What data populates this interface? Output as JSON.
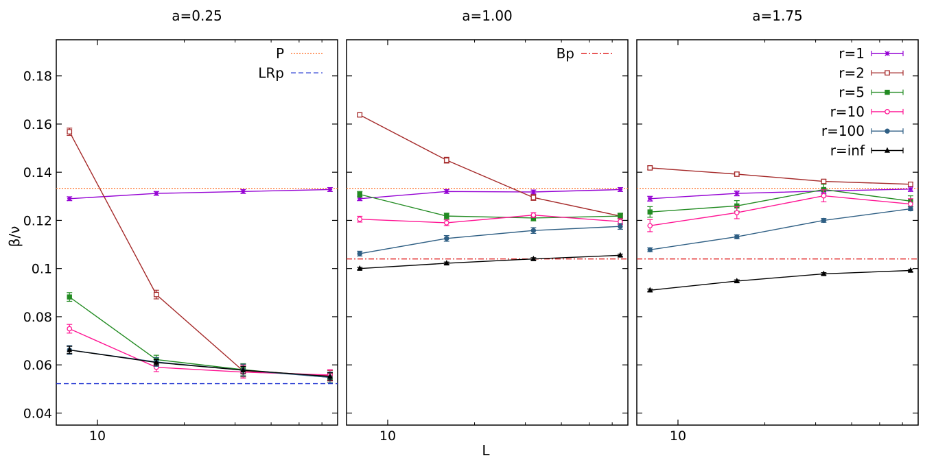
{
  "chart_data": {
    "type": "line",
    "xscale": "log",
    "xlabel": "L",
    "ylabel": "β/ν",
    "xlim": [
      7.2,
      68
    ],
    "ylim": [
      0.035,
      0.195
    ],
    "yticks": [
      0.04,
      0.06,
      0.08,
      0.1,
      0.12,
      0.14,
      0.16,
      0.18
    ],
    "ytick_labels": [
      "0.04",
      "0.06",
      "0.08",
      "0.1",
      "0.12",
      "0.14",
      "0.16",
      "0.18"
    ],
    "xtick_major": [
      10
    ],
    "xtick_major_labels": [
      "10"
    ],
    "xtick_minor": [
      20,
      30,
      40,
      50,
      60
    ],
    "x": [
      8,
      16,
      32,
      64
    ],
    "reference_lines": [
      {
        "name": "P",
        "y": 0.1333,
        "color": "#ff7f3f",
        "style": "dotted"
      },
      {
        "name": "LRp",
        "y": 0.0522,
        "color": "#1a2fd0",
        "style": "dashed"
      },
      {
        "name": "Bp",
        "y": 0.104,
        "color": "#e02020",
        "style": "dashdot"
      }
    ],
    "series_styles": [
      {
        "name": "r=1",
        "color": "#9400d3",
        "marker": "star"
      },
      {
        "name": "r=2",
        "color": "#a52a2a",
        "marker": "square-open"
      },
      {
        "name": "r=5",
        "color": "#228b22",
        "marker": "square"
      },
      {
        "name": "r=10",
        "color": "#ff1493",
        "marker": "circle-open"
      },
      {
        "name": "r=100",
        "color": "#2f5f84",
        "marker": "circle"
      },
      {
        "name": "r=inf",
        "color": "#000000",
        "marker": "triangle"
      }
    ],
    "panels": [
      {
        "title": "a=0.25",
        "legend": [
          "P",
          "LRp"
        ],
        "reference_lines": [
          "P",
          "LRp"
        ],
        "series": [
          {
            "name": "r=1",
            "values": [
              0.129,
              0.1312,
              0.132,
              0.1328
            ],
            "errors": [
              0.0008,
              0.0008,
              0.0008,
              0.0008
            ]
          },
          {
            "name": "r=2",
            "values": [
              0.1568,
              0.0892,
              0.0575,
              0.0555
            ],
            "errors": [
              0.0015,
              0.0018,
              0.0025,
              0.0022
            ]
          },
          {
            "name": "r=5",
            "values": [
              0.0882,
              0.0622,
              0.058,
              0.0548
            ],
            "errors": [
              0.0018,
              0.0018,
              0.0025,
              0.0022
            ]
          },
          {
            "name": "r=10",
            "values": [
              0.075,
              0.059,
              0.057,
              0.0558
            ],
            "errors": [
              0.0018,
              0.0018,
              0.0025,
              0.0022
            ]
          },
          {
            "name": "r=100",
            "values": [
              0.0662,
              0.0612,
              0.0578,
              0.0548
            ],
            "errors": [
              0.0018,
              0.0018,
              0.0025,
              0.0022
            ]
          },
          {
            "name": "r=inf",
            "values": [
              0.0662,
              0.061,
              0.0578,
              0.0552
            ],
            "errors": [
              0.0015,
              0.0012,
              0.0015,
              0.0015
            ]
          }
        ]
      },
      {
        "title": "a=1.00",
        "legend": [
          "Bp"
        ],
        "reference_lines": [
          "P",
          "Bp"
        ],
        "series": [
          {
            "name": "r=1",
            "values": [
              0.129,
              0.132,
              0.1318,
              0.1328
            ],
            "errors": [
              0.0008,
              0.0008,
              0.0008,
              0.0008
            ]
          },
          {
            "name": "r=2",
            "values": [
              0.1638,
              0.145,
              0.1295,
              0.1218
            ],
            "errors": [
              0.0008,
              0.0012,
              0.0012,
              0.001
            ]
          },
          {
            "name": "r=5",
            "values": [
              0.1308,
              0.1218,
              0.121,
              0.1218
            ],
            "errors": [
              0.0012,
              0.0012,
              0.0012,
              0.0012
            ]
          },
          {
            "name": "r=10",
            "values": [
              0.1205,
              0.119,
              0.1222,
              0.1195
            ],
            "errors": [
              0.0012,
              0.0012,
              0.001,
              0.0012
            ]
          },
          {
            "name": "r=100",
            "values": [
              0.1062,
              0.1125,
              0.1158,
              0.1175
            ],
            "errors": [
              0.001,
              0.0012,
              0.0012,
              0.0012
            ]
          },
          {
            "name": "r=inf",
            "values": [
              0.1,
              0.1022,
              0.104,
              0.1055
            ],
            "errors": [
              0.0005,
              0.0005,
              0.0005,
              0.0005
            ]
          }
        ]
      },
      {
        "title": "a=1.75",
        "legend": [
          "r=1",
          "r=2",
          "r=5",
          "r=10",
          "r=100",
          "r=inf"
        ],
        "reference_lines": [
          "P",
          "Bp"
        ],
        "series": [
          {
            "name": "r=1",
            "values": [
              0.129,
              0.1312,
              0.1322,
              0.133
            ],
            "errors": [
              0.001,
              0.001,
              0.001,
              0.001
            ]
          },
          {
            "name": "r=2",
            "values": [
              0.1418,
              0.1392,
              0.1362,
              0.135
            ],
            "errors": [
              0.0008,
              0.0008,
              0.0008,
              0.0008
            ]
          },
          {
            "name": "r=5",
            "values": [
              0.1235,
              0.126,
              0.1328,
              0.128
            ],
            "errors": [
              0.0022,
              0.0022,
              0.0022,
              0.0022
            ]
          },
          {
            "name": "r=10",
            "values": [
              0.1178,
              0.1232,
              0.1302,
              0.1268
            ],
            "errors": [
              0.0025,
              0.0025,
              0.0025,
              0.0022
            ]
          },
          {
            "name": "r=100",
            "values": [
              0.1078,
              0.1132,
              0.12,
              0.1248
            ],
            "errors": [
              0.0008,
              0.0008,
              0.0008,
              0.0008
            ]
          },
          {
            "name": "r=inf",
            "values": [
              0.091,
              0.0948,
              0.0978,
              0.0992
            ],
            "errors": [
              0.0005,
              0.0005,
              0.0005,
              0.0005
            ]
          }
        ]
      }
    ]
  }
}
